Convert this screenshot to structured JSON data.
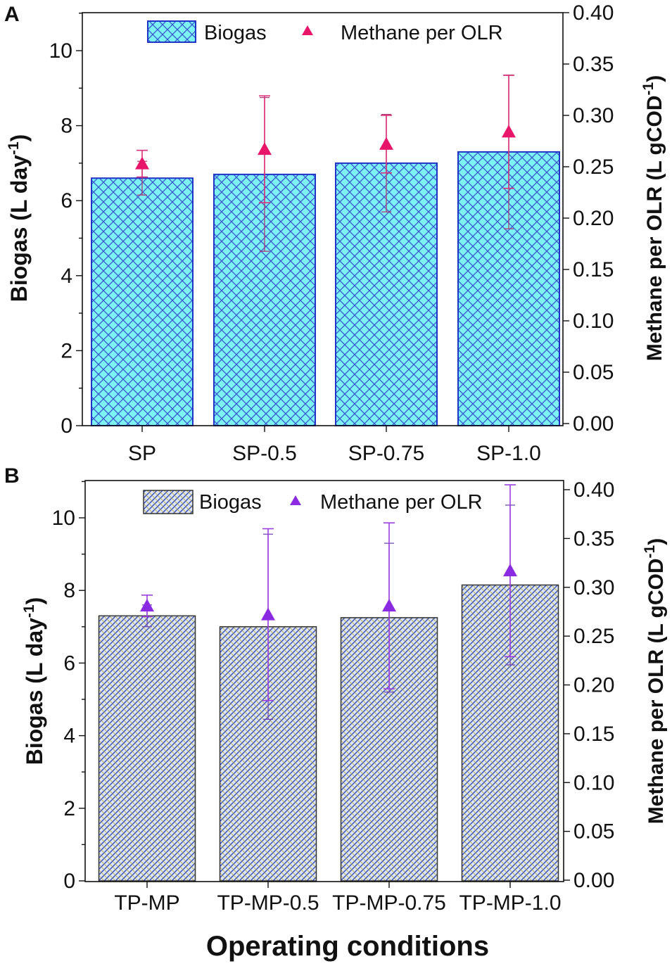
{
  "figure": {
    "x_axis_title": "Operating conditions"
  },
  "chart_data": [
    {
      "panel": "A",
      "type": "bar",
      "categories": [
        "SP",
        "SP-0.5",
        "SP-0.75",
        "SP-1.0"
      ],
      "y_left": {
        "label_main": "Biogas (L day",
        "label_sup": "-1",
        "label_end": ")",
        "lim": [
          0,
          11
        ],
        "ticks": [
          0,
          2,
          4,
          6,
          8,
          10
        ]
      },
      "y_right": {
        "label_main": "Methane per OLR (L gCOD",
        "label_sup": "-1",
        "label_end": ")",
        "lim": [
          0,
          0.4
        ],
        "ticks": [
          "0.00",
          "0.05",
          "0.10",
          "0.15",
          "0.20",
          "0.25",
          "0.30",
          "0.35",
          "0.40"
        ]
      },
      "series": [
        {
          "name": "Biogas",
          "kind": "bar",
          "axis": "left",
          "values": [
            6.6,
            6.7,
            7.0,
            7.3
          ],
          "error": [
            0.45,
            2.05,
            1.3,
            2.05
          ],
          "error_color": "#b0306a"
        },
        {
          "name": "Methane per OLR",
          "kind": "marker",
          "axis": "right",
          "values": [
            0.253,
            0.267,
            0.272,
            0.284
          ],
          "error": [
            0.013,
            0.052,
            0.028,
            0.055
          ],
          "marker": "triangle"
        }
      ],
      "legend": [
        "Biogas",
        "Methane per OLR"
      ],
      "colors": {
        "bar_fill": "#7cf2f2",
        "bar_edge": "#2233c8",
        "hatch": "#3a55d0",
        "marker": "#e8166a",
        "error": "#d8307a"
      }
    },
    {
      "panel": "B",
      "type": "bar",
      "categories": [
        "TP-MP",
        "TP-MP-0.5",
        "TP-MP-0.75",
        "TP-MP-1.0"
      ],
      "y_left": {
        "label_main": "Biogas (L day",
        "label_sup": "-1",
        "label_end": ")",
        "lim": [
          0,
          11
        ],
        "ticks": [
          0,
          2,
          4,
          6,
          8,
          10
        ]
      },
      "y_right": {
        "label_main": "Methane per OLR (L gCOD",
        "label_sup": "-1",
        "label_end": ")",
        "lim": [
          0,
          0.41
        ],
        "ticks": [
          "0.00",
          "0.05",
          "0.10",
          "0.15",
          "0.20",
          "0.25",
          "0.30",
          "0.35",
          "0.40"
        ]
      },
      "series": [
        {
          "name": "Biogas",
          "kind": "bar",
          "axis": "left",
          "values": [
            7.3,
            7.0,
            7.25,
            8.15
          ],
          "error": [
            0.3,
            2.55,
            2.05,
            2.2
          ],
          "error_color": "#6a3ab0"
        },
        {
          "name": "Methane per OLR",
          "kind": "marker",
          "axis": "right",
          "values": [
            0.281,
            0.272,
            0.281,
            0.317
          ],
          "error": [
            0.011,
            0.088,
            0.085,
            0.088
          ],
          "marker": "triangle"
        }
      ],
      "legend": [
        "Biogas",
        "Methane per OLR"
      ],
      "colors": {
        "bar_fill": "#dde4f6",
        "bar_edge": "#333333",
        "hatch": "#3050c0",
        "marker": "#8a2be2",
        "error": "#9a3ee0"
      }
    }
  ]
}
